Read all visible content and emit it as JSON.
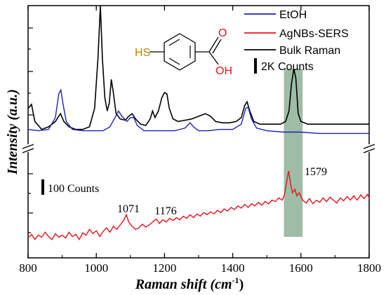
{
  "chart_data": {
    "type": "line",
    "xlabel": "Raman shift (cm",
    "xlabel_sup": "-1",
    "xlabel_close": ")",
    "ylabel": "Intensity (a.u.)",
    "xlim": [
      800,
      1800
    ],
    "x_ticks": [
      "800",
      "1000",
      "1200",
      "1400",
      "1600",
      "1800"
    ],
    "y_axis_break": true,
    "legend": {
      "placement": "top-right",
      "entries": [
        {
          "name": "EtOH",
          "color": "#1f1fbf"
        },
        {
          "name": "AgNBs-SERS",
          "color": "#e8141b"
        },
        {
          "name": "Bulk Raman",
          "color": "#000000"
        }
      ]
    },
    "scale_bars": [
      {
        "label": "2K Counts",
        "applies_to": "upper"
      },
      {
        "label": "100 Counts",
        "applies_to": "lower"
      }
    ],
    "highlight_band": {
      "x_range": [
        1550,
        1605
      ],
      "color": "#7fa588"
    },
    "annotations": [
      {
        "text": "1071",
        "x": 1071
      },
      {
        "text": "1176",
        "x": 1176
      },
      {
        "text": "1579",
        "x": 1579
      }
    ],
    "molecule": {
      "name": "4-mercaptobenzoic acid",
      "label_sh": "HS",
      "label_o": "O",
      "label_oh": "OH",
      "color_s": "#b8860b",
      "color_o": "#e8141b"
    },
    "series": [
      {
        "name": "Bulk Raman",
        "color": "#000000",
        "points": [
          [
            800,
            0.22
          ],
          [
            810,
            0.25
          ],
          [
            820,
            0.12
          ],
          [
            840,
            0.06
          ],
          [
            860,
            0.08
          ],
          [
            880,
            0.12
          ],
          [
            895,
            0.18
          ],
          [
            905,
            0.12
          ],
          [
            920,
            0.08
          ],
          [
            940,
            0.06
          ],
          [
            960,
            0.06
          ],
          [
            980,
            0.08
          ],
          [
            995,
            0.22
          ],
          [
            1005,
            0.6
          ],
          [
            1012,
            1.0
          ],
          [
            1018,
            0.6
          ],
          [
            1025,
            0.3
          ],
          [
            1032,
            0.2
          ],
          [
            1038,
            0.26
          ],
          [
            1044,
            0.44
          ],
          [
            1050,
            0.34
          ],
          [
            1058,
            0.18
          ],
          [
            1070,
            0.14
          ],
          [
            1085,
            0.13
          ],
          [
            1095,
            0.16
          ],
          [
            1105,
            0.18
          ],
          [
            1115,
            0.14
          ],
          [
            1130,
            0.1
          ],
          [
            1145,
            0.09
          ],
          [
            1158,
            0.14
          ],
          [
            1165,
            0.2
          ],
          [
            1172,
            0.15
          ],
          [
            1182,
            0.2
          ],
          [
            1192,
            0.3
          ],
          [
            1200,
            0.34
          ],
          [
            1207,
            0.33
          ],
          [
            1214,
            0.22
          ],
          [
            1225,
            0.14
          ],
          [
            1240,
            0.12
          ],
          [
            1260,
            0.13
          ],
          [
            1280,
            0.14
          ],
          [
            1300,
            0.16
          ],
          [
            1320,
            0.18
          ],
          [
            1335,
            0.16
          ],
          [
            1350,
            0.12
          ],
          [
            1370,
            0.11
          ],
          [
            1390,
            0.11
          ],
          [
            1410,
            0.12
          ],
          [
            1425,
            0.15
          ],
          [
            1435,
            0.24
          ],
          [
            1442,
            0.27
          ],
          [
            1450,
            0.2
          ],
          [
            1462,
            0.12
          ],
          [
            1480,
            0.1
          ],
          [
            1500,
            0.1
          ],
          [
            1520,
            0.1
          ],
          [
            1540,
            0.1
          ],
          [
            1555,
            0.12
          ],
          [
            1565,
            0.2
          ],
          [
            1572,
            0.4
          ],
          [
            1579,
            0.52
          ],
          [
            1585,
            0.45
          ],
          [
            1592,
            0.18
          ],
          [
            1600,
            0.12
          ],
          [
            1620,
            0.1
          ],
          [
            1650,
            0.1
          ],
          [
            1680,
            0.1
          ],
          [
            1710,
            0.1
          ],
          [
            1740,
            0.1
          ],
          [
            1770,
            0.1
          ],
          [
            1800,
            0.1
          ]
        ]
      },
      {
        "name": "EtOH",
        "color": "#1f1fbf",
        "points": [
          [
            800,
            0.06
          ],
          [
            830,
            0.05
          ],
          [
            860,
            0.06
          ],
          [
            880,
            0.15
          ],
          [
            890,
            0.33
          ],
          [
            896,
            0.36
          ],
          [
            902,
            0.26
          ],
          [
            912,
            0.12
          ],
          [
            930,
            0.06
          ],
          [
            960,
            0.05
          ],
          [
            990,
            0.05
          ],
          [
            1020,
            0.05
          ],
          [
            1040,
            0.08
          ],
          [
            1055,
            0.15
          ],
          [
            1065,
            0.2
          ],
          [
            1075,
            0.16
          ],
          [
            1090,
            0.12
          ],
          [
            1100,
            0.15
          ],
          [
            1110,
            0.15
          ],
          [
            1120,
            0.09
          ],
          [
            1140,
            0.05
          ],
          [
            1170,
            0.05
          ],
          [
            1200,
            0.05
          ],
          [
            1230,
            0.05
          ],
          [
            1260,
            0.07
          ],
          [
            1275,
            0.11
          ],
          [
            1285,
            0.08
          ],
          [
            1300,
            0.05
          ],
          [
            1330,
            0.05
          ],
          [
            1360,
            0.06
          ],
          [
            1400,
            0.06
          ],
          [
            1425,
            0.1
          ],
          [
            1438,
            0.22
          ],
          [
            1445,
            0.23
          ],
          [
            1455,
            0.14
          ],
          [
            1470,
            0.07
          ],
          [
            1500,
            0.05
          ],
          [
            1550,
            0.04
          ],
          [
            1600,
            0.04
          ],
          [
            1650,
            0.03
          ],
          [
            1700,
            0.03
          ],
          [
            1750,
            0.03
          ],
          [
            1800,
            0.03
          ]
        ]
      },
      {
        "name": "AgNBs-SERS",
        "color": "#e8141b",
        "points": [
          [
            800,
            0.08
          ],
          [
            810,
            0.13
          ],
          [
            820,
            0.06
          ],
          [
            830,
            0.12
          ],
          [
            840,
            0.09
          ],
          [
            850,
            0.16
          ],
          [
            860,
            0.1
          ],
          [
            870,
            0.06
          ],
          [
            880,
            0.14
          ],
          [
            890,
            0.09
          ],
          [
            900,
            0.12
          ],
          [
            910,
            0.08
          ],
          [
            920,
            0.16
          ],
          [
            930,
            0.1
          ],
          [
            940,
            0.13
          ],
          [
            950,
            0.06
          ],
          [
            960,
            0.15
          ],
          [
            970,
            0.12
          ],
          [
            980,
            0.2
          ],
          [
            990,
            0.14
          ],
          [
            1000,
            0.18
          ],
          [
            1010,
            0.1
          ],
          [
            1020,
            0.17
          ],
          [
            1030,
            0.22
          ],
          [
            1040,
            0.16
          ],
          [
            1050,
            0.24
          ],
          [
            1060,
            0.2
          ],
          [
            1070,
            0.26
          ],
          [
            1080,
            0.32
          ],
          [
            1088,
            0.4
          ],
          [
            1095,
            0.3
          ],
          [
            1105,
            0.24
          ],
          [
            1115,
            0.2
          ],
          [
            1125,
            0.22
          ],
          [
            1135,
            0.27
          ],
          [
            1145,
            0.23
          ],
          [
            1155,
            0.26
          ],
          [
            1165,
            0.3
          ],
          [
            1176,
            0.34
          ],
          [
            1185,
            0.28
          ],
          [
            1195,
            0.33
          ],
          [
            1205,
            0.3
          ],
          [
            1215,
            0.35
          ],
          [
            1225,
            0.32
          ],
          [
            1235,
            0.36
          ],
          [
            1245,
            0.33
          ],
          [
            1255,
            0.38
          ],
          [
            1265,
            0.35
          ],
          [
            1275,
            0.4
          ],
          [
            1285,
            0.36
          ],
          [
            1295,
            0.41
          ],
          [
            1305,
            0.38
          ],
          [
            1315,
            0.43
          ],
          [
            1325,
            0.4
          ],
          [
            1335,
            0.44
          ],
          [
            1345,
            0.41
          ],
          [
            1355,
            0.46
          ],
          [
            1365,
            0.43
          ],
          [
            1375,
            0.48
          ],
          [
            1385,
            0.45
          ],
          [
            1395,
            0.5
          ],
          [
            1405,
            0.47
          ],
          [
            1415,
            0.52
          ],
          [
            1425,
            0.49
          ],
          [
            1435,
            0.54
          ],
          [
            1445,
            0.5
          ],
          [
            1455,
            0.55
          ],
          [
            1465,
            0.52
          ],
          [
            1475,
            0.57
          ],
          [
            1485,
            0.53
          ],
          [
            1495,
            0.58
          ],
          [
            1505,
            0.55
          ],
          [
            1515,
            0.6
          ],
          [
            1525,
            0.58
          ],
          [
            1535,
            0.63
          ],
          [
            1545,
            0.6
          ],
          [
            1552,
            0.68
          ],
          [
            1558,
            0.85
          ],
          [
            1564,
            1.0
          ],
          [
            1570,
            0.82
          ],
          [
            1575,
            0.7
          ],
          [
            1582,
            0.75
          ],
          [
            1588,
            0.66
          ],
          [
            1595,
            0.7
          ],
          [
            1605,
            0.6
          ],
          [
            1615,
            0.56
          ],
          [
            1625,
            0.62
          ],
          [
            1635,
            0.55
          ],
          [
            1645,
            0.6
          ],
          [
            1655,
            0.57
          ],
          [
            1665,
            0.63
          ],
          [
            1675,
            0.58
          ],
          [
            1685,
            0.64
          ],
          [
            1695,
            0.6
          ],
          [
            1705,
            0.56
          ],
          [
            1715,
            0.63
          ],
          [
            1725,
            0.59
          ],
          [
            1735,
            0.65
          ],
          [
            1745,
            0.6
          ],
          [
            1755,
            0.66
          ],
          [
            1765,
            0.6
          ],
          [
            1775,
            0.67
          ],
          [
            1785,
            0.62
          ],
          [
            1795,
            0.68
          ],
          [
            1800,
            0.63
          ]
        ]
      }
    ]
  }
}
